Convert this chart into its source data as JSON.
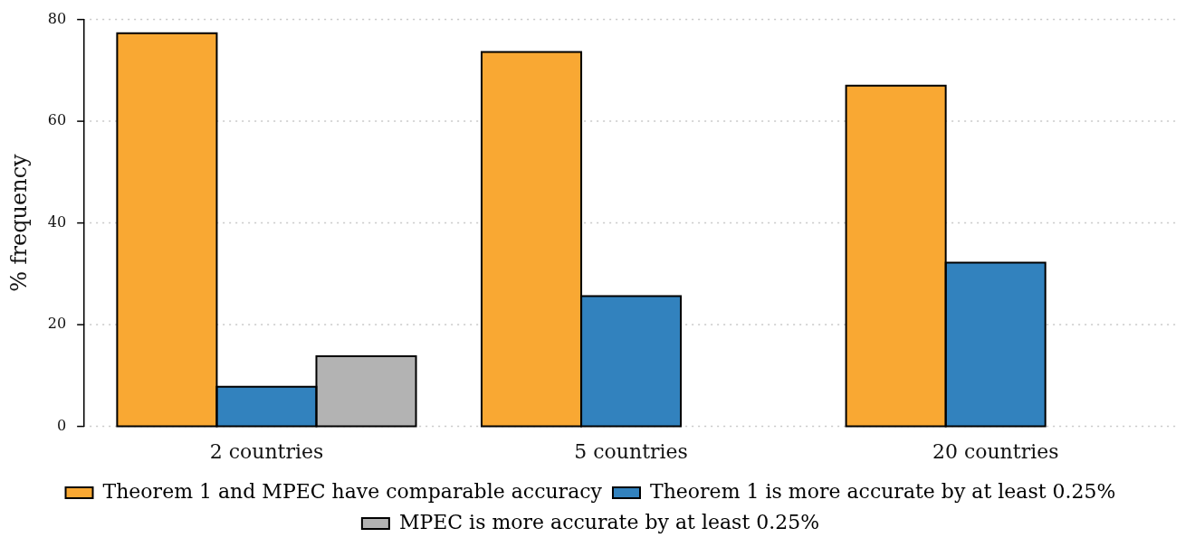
{
  "chart_data": {
    "type": "bar",
    "ylabel": "% frequency",
    "categories": [
      "2 countries",
      "5 countries",
      "20 countries"
    ],
    "series": [
      {
        "name": "Theorem 1 and MPEC have comparable accuracy",
        "color": "#f9a833",
        "values": [
          77.3,
          73.6,
          67.0
        ]
      },
      {
        "name": "Theorem 1 is more accurate by at least 0.25%",
        "color": "#3282be",
        "values": [
          7.8,
          25.6,
          32.2
        ]
      },
      {
        "name": "MPEC is more accurate by at least 0.25%",
        "color": "#b3b3b3",
        "values": [
          13.8,
          null,
          null
        ]
      }
    ],
    "ylim": [
      0,
      80
    ],
    "yticks": [
      0,
      20,
      40,
      60,
      80
    ],
    "grid": "y",
    "legend": "bottom"
  }
}
